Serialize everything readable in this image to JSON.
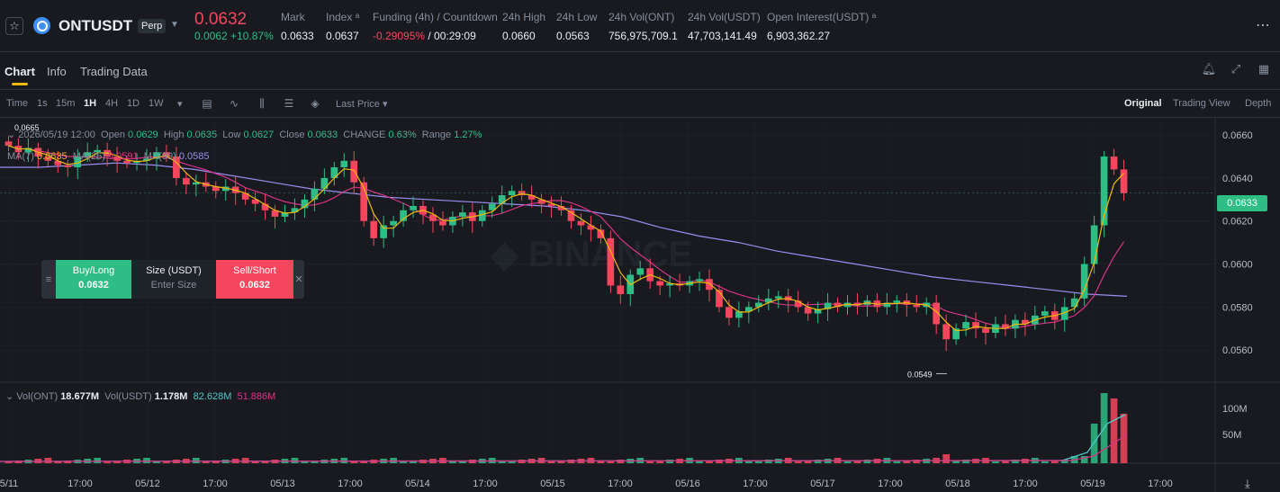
{
  "ticker": {
    "symbol": "ONTUSDT",
    "badge": "Perp",
    "last_price": "0.0632",
    "change": "0.0062 +10.87%",
    "stats": [
      {
        "label": "Mark",
        "value": "0.0633"
      },
      {
        "label": "Index ᵃ",
        "value": "0.0637"
      },
      {
        "label": "Funding (4h) / Countdown",
        "value_neg": "-0.29095%",
        "value": " / 00:29:09"
      },
      {
        "label": "24h High",
        "value": "0.0660"
      },
      {
        "label": "24h Low",
        "value": "0.0563"
      },
      {
        "label": "24h Vol(ONT)",
        "value": "756,975,709.1"
      },
      {
        "label": "24h Vol(USDT)",
        "value": "47,703,141.49"
      },
      {
        "label": "Open Interest(USDT) ᵃ",
        "value": "6,903,362.27"
      }
    ]
  },
  "tabs": {
    "chart": "Chart",
    "info": "Info",
    "trading_data": "Trading Data"
  },
  "toolbar": {
    "intervals": [
      "Time",
      "1s",
      "15m",
      "1H",
      "4H",
      "1D",
      "1W"
    ],
    "active_interval": "1H",
    "price_type": "Last Price",
    "views": [
      "Original",
      "Trading View",
      "Depth"
    ],
    "active_view": "Original"
  },
  "legend": {
    "date": "2026/05/19 12:00",
    "open_label": "Open",
    "open": "0.0629",
    "high_label": "High",
    "high": "0.0635",
    "low_label": "Low",
    "low": "0.0627",
    "close_label": "Close",
    "close": "0.0633",
    "change_label": "CHANGE",
    "change": "0.63%",
    "range_label": "Range",
    "range": "1.27%",
    "ma7_label": "MA(7)",
    "ma7": "0.0635",
    "ma25_label": "MA(25)",
    "ma25": "0.0591",
    "ma99_label": "MA(99)",
    "ma99": "0.0585",
    "vol_label": "Vol(ONT)",
    "vol": "18.677M",
    "volusdt_label": "Vol(USDT)",
    "volusdt": "1.178M",
    "vol_ma1": "82.628M",
    "vol_ma2": "51.886M"
  },
  "order": {
    "buy_label": "Buy/Long",
    "buy_price": "0.0632",
    "size_label": "Size (USDT)",
    "size_placeholder": "Enter Size",
    "sell_label": "Sell/Short",
    "sell_price": "0.0632"
  },
  "colors": {
    "up": "#2ebd85",
    "down": "#f6465d",
    "ma7": "#f0b90b",
    "ma25": "#d63384",
    "ma99": "#9b8cf0",
    "bg": "#181a20",
    "grid": "#2b3139"
  },
  "chart_data": {
    "type": "candlestick",
    "price_ticks": [
      "0.0660",
      "0.0640",
      "0.0620",
      "0.0600",
      "0.0580",
      "0.0560"
    ],
    "volume_ticks": [
      "100M",
      "50M"
    ],
    "current_price": "0.0633",
    "low_marker": "0.0549",
    "high_marker": "0.0665",
    "x_ticks": [
      "5/11",
      "17:00",
      "05/12",
      "17:00",
      "05/13",
      "17:00",
      "05/14",
      "17:00",
      "05/15",
      "17:00",
      "05/16",
      "17:00",
      "05/17",
      "17:00",
      "05/18",
      "17:00",
      "05/19",
      "17:00"
    ],
    "close_path": [
      0.0655,
      0.0652,
      0.0654,
      0.065,
      0.0648,
      0.0646,
      0.0645,
      0.065,
      0.0652,
      0.0653,
      0.065,
      0.0648,
      0.0647,
      0.0648,
      0.0649,
      0.0652,
      0.065,
      0.064,
      0.0637,
      0.0638,
      0.0636,
      0.0634,
      0.0636,
      0.0633,
      0.063,
      0.0628,
      0.0625,
      0.0622,
      0.0624,
      0.0626,
      0.063,
      0.0635,
      0.064,
      0.0645,
      0.0648,
      0.0638,
      0.062,
      0.0612,
      0.0618,
      0.062,
      0.0625,
      0.0627,
      0.0623,
      0.062,
      0.0618,
      0.0622,
      0.0624,
      0.062,
      0.0625,
      0.0628,
      0.0632,
      0.0634,
      0.0632,
      0.063,
      0.0628,
      0.0627,
      0.0625,
      0.062,
      0.0618,
      0.0616,
      0.0612,
      0.059,
      0.0586,
      0.0595,
      0.0598,
      0.0592,
      0.059,
      0.0591,
      0.059,
      0.0592,
      0.0593,
      0.0588,
      0.058,
      0.0575,
      0.0578,
      0.058,
      0.0582,
      0.0584,
      0.0585,
      0.0583,
      0.058,
      0.0577,
      0.0579,
      0.0582,
      0.058,
      0.0582,
      0.0581,
      0.0583,
      0.058,
      0.0582,
      0.0583,
      0.0581,
      0.058,
      0.0582,
      0.0572,
      0.0565,
      0.057,
      0.0573,
      0.057,
      0.0568,
      0.0572,
      0.057,
      0.0574,
      0.0572,
      0.0576,
      0.0578,
      0.0574,
      0.058,
      0.0584,
      0.06,
      0.0618,
      0.065,
      0.0644,
      0.0633
    ],
    "ma99_path": [
      0.0645,
      0.0645,
      0.0646,
      0.0647,
      0.0646,
      0.0644,
      0.0641,
      0.0638,
      0.0635,
      0.0633,
      0.0631,
      0.063,
      0.0629,
      0.0628,
      0.0627,
      0.0625,
      0.0622,
      0.0617,
      0.0613,
      0.061,
      0.0606,
      0.0603,
      0.06,
      0.0597,
      0.0594,
      0.0592,
      0.059,
      0.0588,
      0.0586,
      0.0585
    ]
  }
}
